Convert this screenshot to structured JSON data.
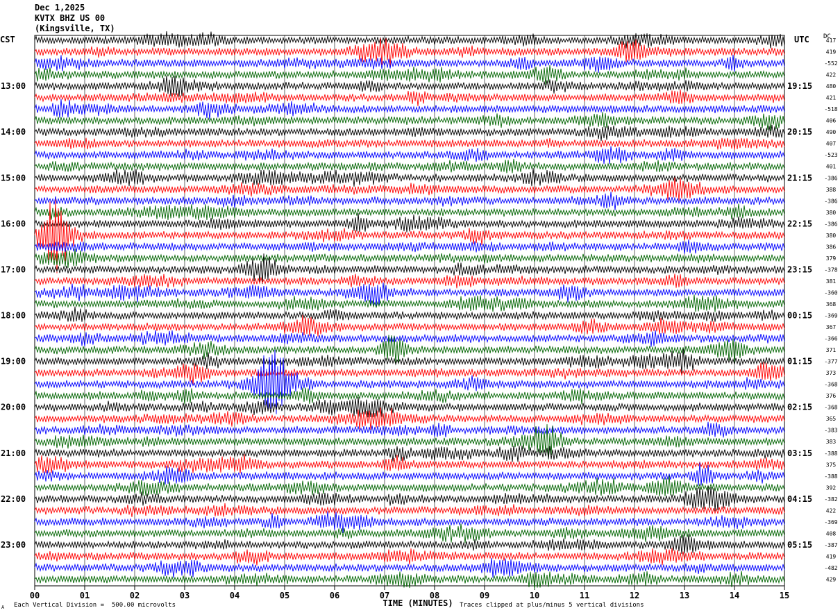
{
  "header": {
    "date": "Dec 1,2025",
    "station": "KVTX BHZ US 00",
    "location": "(Kingsville, TX)"
  },
  "left_timezone": "CST",
  "right_timezone": "UTC",
  "dc_label": "DC",
  "footer": {
    "scale_note": "Each Vertical Division =  500.00 microvolts",
    "clip_note": "Traces clipped at plus/minus 5 vertical divisions",
    "corner_mark": "A"
  },
  "colors": {
    "trace_cycle": [
      "#000000",
      "#ff0000",
      "#0000ff",
      "#006400"
    ],
    "grid": "#000000",
    "background": "#ffffff"
  },
  "chart_data": {
    "type": "line",
    "subtype": "helicorder",
    "xlabel": "TIME (MINUTES)",
    "x_ticks": [
      "00",
      "01",
      "02",
      "03",
      "04",
      "05",
      "06",
      "07",
      "08",
      "09",
      "10",
      "11",
      "12",
      "13",
      "14",
      "15"
    ],
    "xlim": [
      0,
      15
    ],
    "left_hour_labels": [
      "13:00",
      "14:00",
      "15:00",
      "16:00",
      "17:00",
      "18:00",
      "19:00",
      "20:00",
      "21:00",
      "22:00",
      "23:00"
    ],
    "right_hour_labels": [
      "19:15",
      "20:15",
      "21:15",
      "22:15",
      "23:15",
      "00:15",
      "01:15",
      "02:15",
      "03:15",
      "04:15",
      "05:15"
    ],
    "dc_offsets": [
      "417",
      "419",
      "-552",
      "422",
      "480",
      "421",
      "-518",
      "406",
      "490",
      "407",
      "-523",
      "401",
      "-386",
      "388",
      "-386",
      "380",
      "-386",
      "380",
      "386",
      "379",
      "-378",
      "381",
      "-360",
      "368",
      "-369",
      "367",
      "-366",
      "371",
      "-377",
      "373",
      "-368",
      "376",
      "-368",
      "365",
      "-383",
      "383",
      "-388",
      "375",
      "-388",
      "392",
      "-382",
      "422",
      "-369",
      "408",
      "-387",
      "419",
      "-482",
      "429"
    ],
    "traces_per_hour": 4,
    "trace_count": 48,
    "start_time": "12:00 CST",
    "series": [
      {
        "name": "trace",
        "amplitude_divisions": 0.5
      }
    ]
  }
}
